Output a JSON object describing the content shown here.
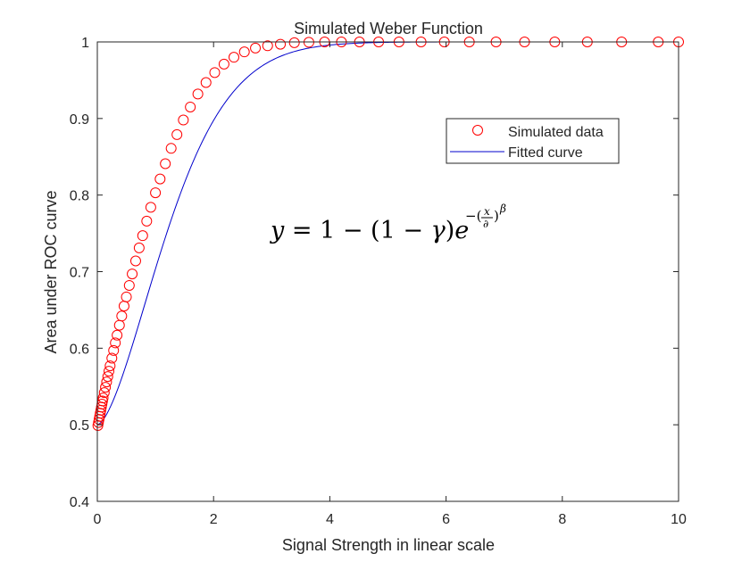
{
  "chart_data": {
    "type": "scatter",
    "title": "Simulated Weber Function",
    "xlabel": "Signal Strength in linear scale",
    "ylabel": "Area under ROC curve",
    "xlim": [
      0,
      10
    ],
    "ylim": [
      0.4,
      1
    ],
    "xticks": [
      "0",
      "2",
      "4",
      "6",
      "8",
      "10"
    ],
    "yticks": [
      "0.4",
      "0.5",
      "0.6",
      "0.7",
      "0.8",
      "0.9",
      "1"
    ],
    "grid": false,
    "legend_position": "upper-right",
    "legend": [
      {
        "label": "Simulated data",
        "marker": "circle",
        "color": "#ff0000"
      },
      {
        "label": "Fitted curve",
        "marker": "line",
        "color": "#0000cc"
      }
    ],
    "annotation": {
      "y": "y",
      "one": "1",
      "gamma": "γ",
      "e": "e",
      "x": "x",
      "delta": "∂",
      "beta": "β"
    },
    "series": [
      {
        "name": "Simulated data",
        "style": "marker-circle",
        "color": "#ff0000",
        "x": [
          0.01,
          0.02,
          0.03,
          0.04,
          0.05,
          0.06,
          0.07,
          0.08,
          0.09,
          0.1,
          0.12,
          0.14,
          0.16,
          0.18,
          0.2,
          0.22,
          0.25,
          0.28,
          0.31,
          0.34,
          0.38,
          0.42,
          0.46,
          0.5,
          0.55,
          0.6,
          0.66,
          0.72,
          0.78,
          0.85,
          0.92,
          1.0,
          1.08,
          1.17,
          1.27,
          1.37,
          1.48,
          1.6,
          1.73,
          1.87,
          2.02,
          2.18,
          2.35,
          2.53,
          2.72,
          2.93,
          3.15,
          3.39,
          3.64,
          3.91,
          4.2,
          4.51,
          4.84,
          5.19,
          5.57,
          5.97,
          6.4,
          6.86,
          7.35,
          7.87,
          8.43,
          9.02,
          9.65,
          10.0
        ],
        "y": [
          0.499,
          0.503,
          0.507,
          0.511,
          0.515,
          0.519,
          0.523,
          0.527,
          0.531,
          0.535,
          0.542,
          0.549,
          0.556,
          0.563,
          0.57,
          0.577,
          0.587,
          0.597,
          0.607,
          0.617,
          0.63,
          0.642,
          0.655,
          0.667,
          0.682,
          0.697,
          0.714,
          0.731,
          0.747,
          0.766,
          0.784,
          0.803,
          0.821,
          0.841,
          0.861,
          0.879,
          0.898,
          0.915,
          0.932,
          0.947,
          0.96,
          0.971,
          0.98,
          0.987,
          0.992,
          0.995,
          0.997,
          0.999,
          0.9995,
          1.0,
          1.0,
          1.0,
          1.0,
          1.0,
          1.0,
          1.0,
          1.0,
          1.0,
          1.0,
          1.0,
          1.0,
          1.0,
          1.0,
          1.0
        ]
      },
      {
        "name": "Fitted curve",
        "style": "line",
        "color": "#0000cc",
        "model": {
          "gamma": 0.5,
          "delta": 1.5,
          "beta": 1.6
        },
        "x_range": [
          0,
          10
        ]
      }
    ]
  }
}
